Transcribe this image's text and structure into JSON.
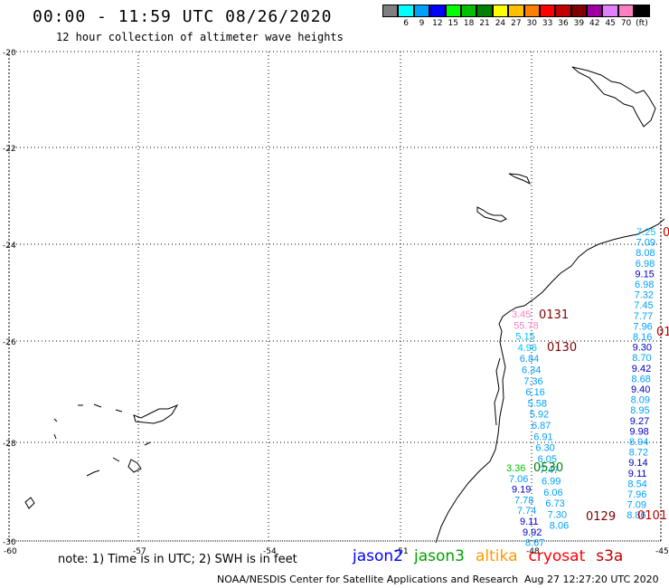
{
  "header": {
    "title": "00:00 - 11:59 UTC 08/26/2020",
    "subtitle": "12 hour collection of altimeter wave heights"
  },
  "color_scale": [
    {
      "label": "3",
      "color": "#7f7f7f"
    },
    {
      "label": "6",
      "color": "#00ffff"
    },
    {
      "label": "9",
      "color": "#00a0ff"
    },
    {
      "label": "12",
      "color": "#0000ff"
    },
    {
      "label": "15",
      "color": "#00ff00"
    },
    {
      "label": "18",
      "color": "#00c000"
    },
    {
      "label": "21",
      "color": "#008000"
    },
    {
      "label": "24",
      "color": "#ffff00"
    },
    {
      "label": "27",
      "color": "#ffc000"
    },
    {
      "label": "30",
      "color": "#ff8000"
    },
    {
      "label": "33",
      "color": "#ff0000"
    },
    {
      "label": "36",
      "color": "#c00000"
    },
    {
      "label": "39",
      "color": "#800000"
    },
    {
      "label": "42",
      "color": "#a000a0"
    },
    {
      "label": "45",
      "color": "#e080ff"
    },
    {
      "label": "70",
      "color": "#ff80c0"
    },
    {
      "label": "(ft)",
      "color": "#000000"
    }
  ],
  "map": {
    "lat_labels": [
      "-20",
      "-22",
      "-24",
      "-26",
      "-28",
      "-30"
    ],
    "lon_labels": [
      "-60",
      "-57",
      "-54",
      "-51",
      "-48",
      "-45"
    ],
    "passes": [
      {
        "label": "0131",
        "color": "#800000"
      },
      {
        "label": "0130",
        "color": "#800000"
      },
      {
        "label": "0530",
        "color": "#008000"
      },
      {
        "label": "0129",
        "color": "#800000"
      },
      {
        "label": "0101",
        "color": "#c00000"
      },
      {
        "label": "01",
        "color": "#c00000"
      },
      {
        "label": "0",
        "color": "#c00000"
      }
    ],
    "track_a": [
      "7.25",
      "7.09",
      "8.08",
      "6.98",
      "9.15",
      "6.98",
      "7.32",
      "7.45",
      "7.77",
      "7.96",
      "8.16",
      "9.30",
      "8.70",
      "9.42",
      "8.68",
      "9.40",
      "8.09",
      "8.95",
      "9.27",
      "9.98",
      "8.94",
      "8.72",
      "9.14",
      "9.11",
      "8.54",
      "7.96",
      "7.09",
      "8.86"
    ],
    "track_a_colors": [
      "#00c0ff",
      "#00a0ff",
      "#00a0ff",
      "#00a0ff",
      "#0000c0",
      "#00a0ff",
      "#00a0ff",
      "#00a0ff",
      "#00a0ff",
      "#00a0ff",
      "#00a0ff",
      "#0000c0",
      "#00a0ff",
      "#0000c0",
      "#00a0ff",
      "#0000c0",
      "#00a0ff",
      "#00a0ff",
      "#0000c0",
      "#0000c0",
      "#00a0ff",
      "#00a0ff",
      "#0000c0",
      "#0000c0",
      "#00a0ff",
      "#00a0ff",
      "#00a0ff",
      "#00a0ff"
    ],
    "track_b": [
      "3.45",
      "55.78",
      "5.15",
      "4.96",
      "6.84",
      "6.34",
      "7.36",
      "6.16",
      "5.58",
      "5.92",
      "6.87",
      "6.91",
      "6.30",
      "6.05",
      "7.47",
      "6.99",
      "6.06",
      "6.73",
      "7.30",
      "8.06"
    ],
    "track_b_colors": [
      "#ff80c0",
      "#ff80c0",
      "#00c0ff",
      "#00c0ff",
      "#00a0ff",
      "#00a0ff",
      "#00a0ff",
      "#00a0ff",
      "#00a0ff",
      "#00a0ff",
      "#00a0ff",
      "#00a0ff",
      "#00a0ff",
      "#00a0ff",
      "#00a0ff",
      "#00a0ff",
      "#00a0ff",
      "#00a0ff",
      "#00a0ff",
      "#00a0ff"
    ],
    "track_c": [
      "3.36",
      "7.06",
      "9.19",
      "7.78",
      "7.74",
      "9.11",
      "9.92",
      "8.67"
    ],
    "track_c_colors": [
      "#00c000",
      "#00a0ff",
      "#0000c0",
      "#00a0ff",
      "#00a0ff",
      "#0000c0",
      "#0000c0",
      "#00a0ff"
    ]
  },
  "footer": {
    "note": "note: 1) Time is in UTC; 2) SWH is in feet",
    "satellites": [
      {
        "name": "jason2",
        "color": "#0000ff"
      },
      {
        "name": "jason3",
        "color": "#00a000"
      },
      {
        "name": "altika",
        "color": "#ff9900"
      },
      {
        "name": "cryosat",
        "color": "#ff0000"
      },
      {
        "name": "s3a",
        "color": "#c00000"
      }
    ],
    "credit": "NOAA/NESDIS Center for Satellite Applications and Research",
    "timestamp": "Aug 27 12:27:20 UTC 2020"
  }
}
